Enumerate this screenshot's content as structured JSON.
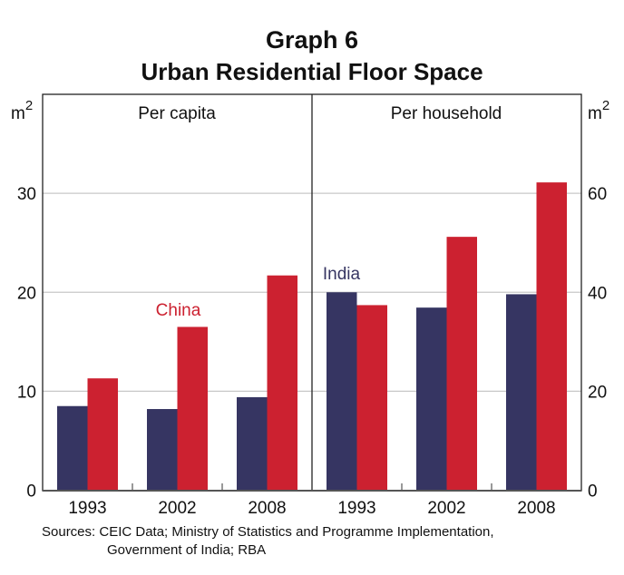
{
  "chart_data": {
    "type": "bar",
    "title": "Graph 6",
    "subtitle": "Urban Residential Floor Space",
    "source": [
      "Sources: CEIC Data; Ministry of Statistics and Programme Implementation,",
      "Government of India; RBA"
    ],
    "panels": [
      {
        "name": "Per capita",
        "categories": [
          "1993",
          "2002",
          "2008"
        ],
        "ylabel": "m2",
        "ylim": [
          0,
          40
        ],
        "yticks": [
          0,
          10,
          20,
          30
        ],
        "axis_side": "left",
        "series": [
          {
            "name": "India",
            "color": "#363562",
            "values": [
              8.5,
              8.2,
              9.4
            ]
          },
          {
            "name": "China",
            "color": "#CC2130",
            "values": [
              11.3,
              16.5,
              21.7
            ]
          }
        ],
        "annotation": {
          "text": "China",
          "series": "China",
          "category": "2002"
        }
      },
      {
        "name": "Per household",
        "categories": [
          "1993",
          "2002",
          "2008"
        ],
        "ylabel": "m2",
        "ylim": [
          0,
          80
        ],
        "yticks": [
          0,
          20,
          40,
          60
        ],
        "axis_side": "right",
        "series": [
          {
            "name": "India",
            "color": "#363562",
            "values": [
              40.0,
              36.9,
              39.6
            ]
          },
          {
            "name": "China",
            "color": "#CC2130",
            "values": [
              37.4,
              51.2,
              62.2
            ]
          }
        ],
        "annotation": {
          "text": "India",
          "series": "India",
          "category": "1993"
        }
      }
    ],
    "grid": true,
    "legend": "inline-annotations"
  }
}
